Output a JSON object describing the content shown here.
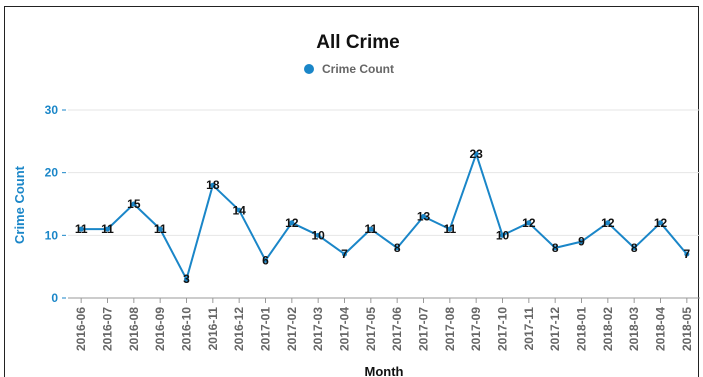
{
  "chart_data": {
    "type": "line",
    "title": "All Crime",
    "xlabel": "Month",
    "ylabel": "Crime Count",
    "ylim": [
      0,
      30
    ],
    "yticks": [
      0,
      10,
      20,
      30
    ],
    "grid": true,
    "legend_position": "top-center",
    "categories": [
      "2016-06",
      "2016-07",
      "2016-08",
      "2016-09",
      "2016-10",
      "2016-11",
      "2016-12",
      "2017-01",
      "2017-02",
      "2017-03",
      "2017-04",
      "2017-05",
      "2017-06",
      "2017-07",
      "2017-08",
      "2017-09",
      "2017-10",
      "2017-11",
      "2017-12",
      "2018-01",
      "2018-02",
      "2018-03",
      "2018-04",
      "2018-05"
    ],
    "series": [
      {
        "name": "Crime Count",
        "color": "#1a86c8",
        "values": [
          11,
          11,
          15,
          11,
          3,
          18,
          14,
          6,
          12,
          10,
          7,
          11,
          8,
          13,
          11,
          23,
          10,
          12,
          8,
          9,
          12,
          8,
          12,
          7
        ]
      }
    ]
  }
}
